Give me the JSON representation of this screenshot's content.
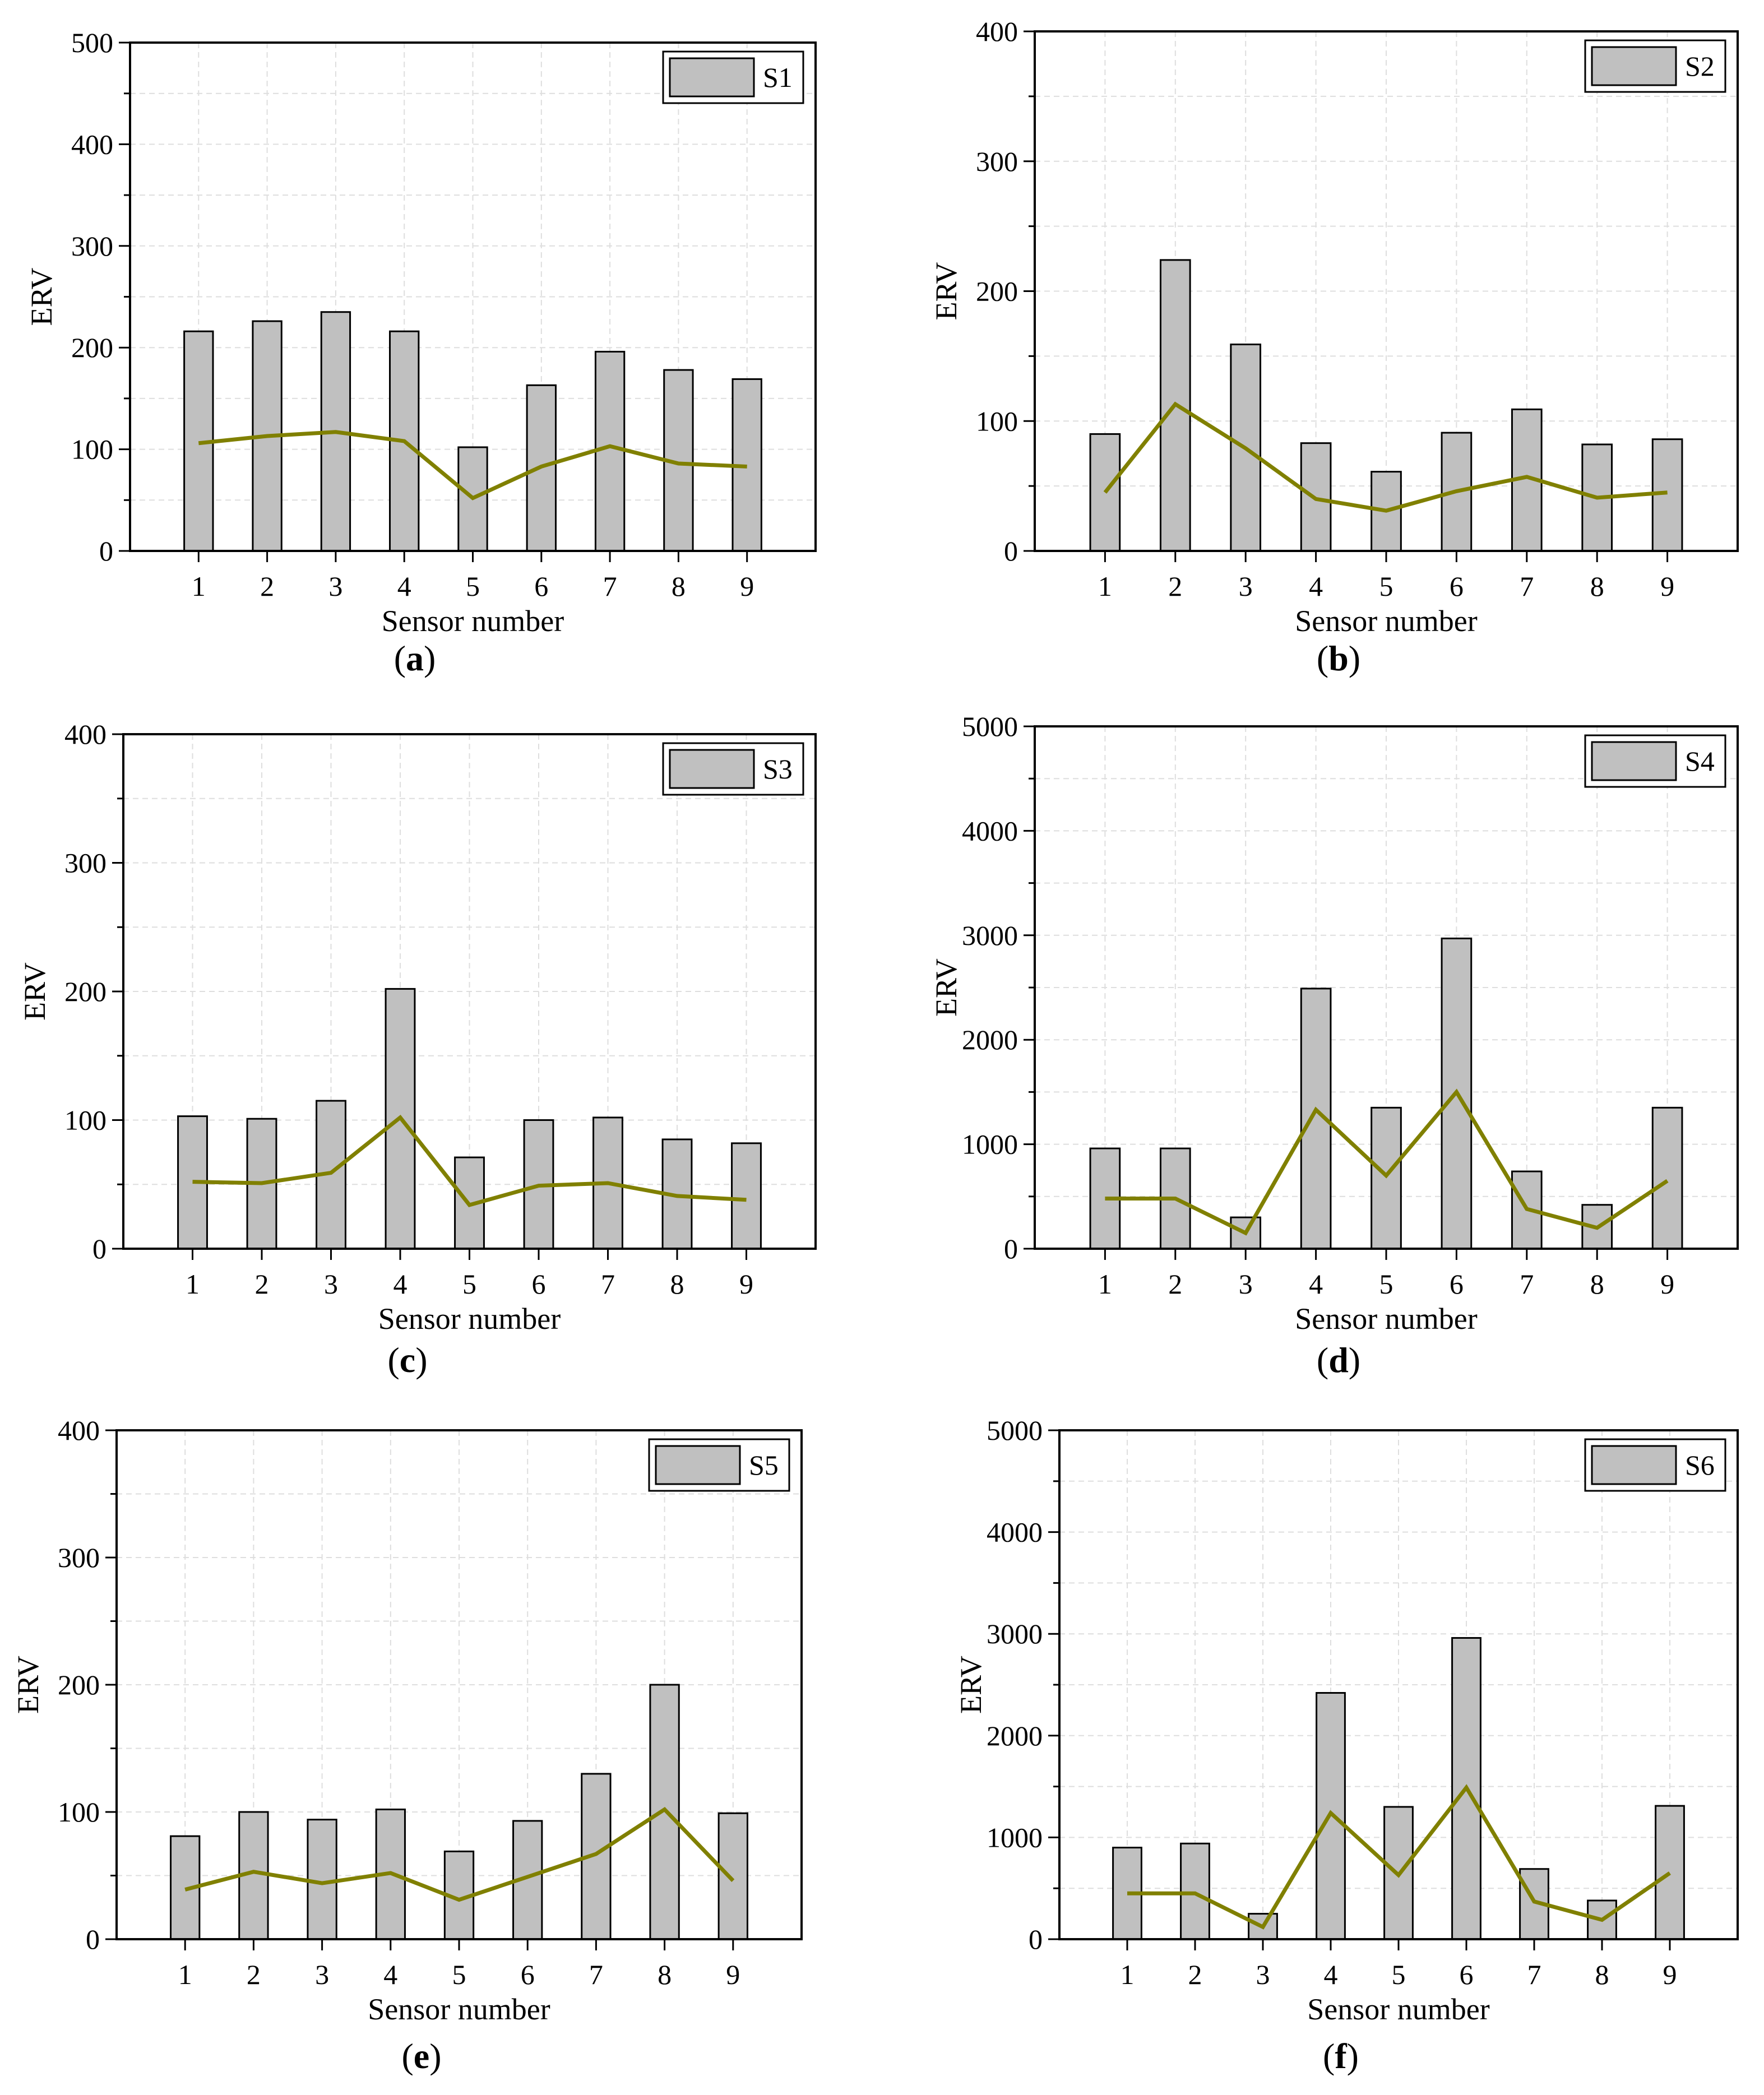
{
  "colors": {
    "bar_fill": "#c0c0c0",
    "bar_stroke": "#000000",
    "line": "#808000",
    "grid": "#dedede",
    "axis": "#000000"
  },
  "chart_data": [
    {
      "panel": "a",
      "type": "bar",
      "legend": "S1",
      "xlabel": "Sensor number",
      "ylabel": "ERV",
      "categories": [
        "1",
        "2",
        "3",
        "4",
        "5",
        "6",
        "7",
        "8",
        "9"
      ],
      "ylim": [
        0,
        500
      ],
      "yticks": [
        "0",
        "100",
        "200",
        "300",
        "400",
        "500"
      ],
      "values": [
        216,
        226,
        235,
        216,
        102,
        163,
        196,
        178,
        169
      ],
      "line": [
        106,
        113,
        117,
        108,
        52,
        83,
        103,
        86,
        83
      ]
    },
    {
      "panel": "b",
      "type": "bar",
      "legend": "S2",
      "xlabel": "Sensor number",
      "ylabel": "ERV",
      "categories": [
        "1",
        "2",
        "3",
        "4",
        "5",
        "6",
        "7",
        "8",
        "9"
      ],
      "ylim": [
        0,
        400
      ],
      "yticks": [
        "0",
        "100",
        "200",
        "300",
        "400"
      ],
      "values": [
        90,
        224,
        159,
        83,
        61,
        91,
        109,
        82,
        86
      ],
      "line": [
        45,
        113,
        79,
        40,
        31,
        46,
        57,
        41,
        45
      ]
    },
    {
      "panel": "c",
      "type": "bar",
      "legend": "S3",
      "xlabel": "Sensor number",
      "ylabel": "ERV",
      "categories": [
        "1",
        "2",
        "3",
        "4",
        "5",
        "6",
        "7",
        "8",
        "9"
      ],
      "ylim": [
        0,
        400
      ],
      "yticks": [
        "0",
        "100",
        "200",
        "300",
        "400"
      ],
      "values": [
        103,
        101,
        115,
        202,
        71,
        100,
        102,
        85,
        82
      ],
      "line": [
        52,
        51,
        59,
        102,
        34,
        49,
        51,
        41,
        38
      ]
    },
    {
      "panel": "d",
      "type": "bar",
      "legend": "S4",
      "xlabel": "Sensor number",
      "ylabel": "ERV",
      "categories": [
        "1",
        "2",
        "3",
        "4",
        "5",
        "6",
        "7",
        "8",
        "9"
      ],
      "ylim": [
        0,
        5000
      ],
      "yticks": [
        "0",
        "1000",
        "2000",
        "3000",
        "4000",
        "5000"
      ],
      "values": [
        960,
        960,
        300,
        2490,
        1350,
        2970,
        740,
        420,
        1350
      ],
      "line": [
        480,
        480,
        150,
        1330,
        700,
        1500,
        380,
        200,
        650
      ]
    },
    {
      "panel": "e",
      "type": "bar",
      "legend": "S5",
      "xlabel": "Sensor number",
      "ylabel": "ERV",
      "categories": [
        "1",
        "2",
        "3",
        "4",
        "5",
        "6",
        "7",
        "8",
        "9"
      ],
      "ylim": [
        0,
        400
      ],
      "yticks": [
        "0",
        "100",
        "200",
        "300",
        "400"
      ],
      "values": [
        81,
        100,
        94,
        102,
        69,
        93,
        130,
        200,
        99
      ],
      "line": [
        39,
        53,
        44,
        52,
        31,
        49,
        67,
        102,
        46
      ]
    },
    {
      "panel": "f",
      "type": "bar",
      "legend": "S6",
      "xlabel": "Sensor number",
      "ylabel": "ERV",
      "categories": [
        "1",
        "2",
        "3",
        "4",
        "5",
        "6",
        "7",
        "8",
        "9"
      ],
      "ylim": [
        0,
        5000
      ],
      "yticks": [
        "0",
        "1000",
        "2000",
        "3000",
        "4000",
        "5000"
      ],
      "values": [
        900,
        940,
        250,
        2420,
        1300,
        2960,
        690,
        380,
        1310
      ],
      "line": [
        450,
        450,
        120,
        1240,
        630,
        1490,
        370,
        190,
        650
      ]
    }
  ]
}
